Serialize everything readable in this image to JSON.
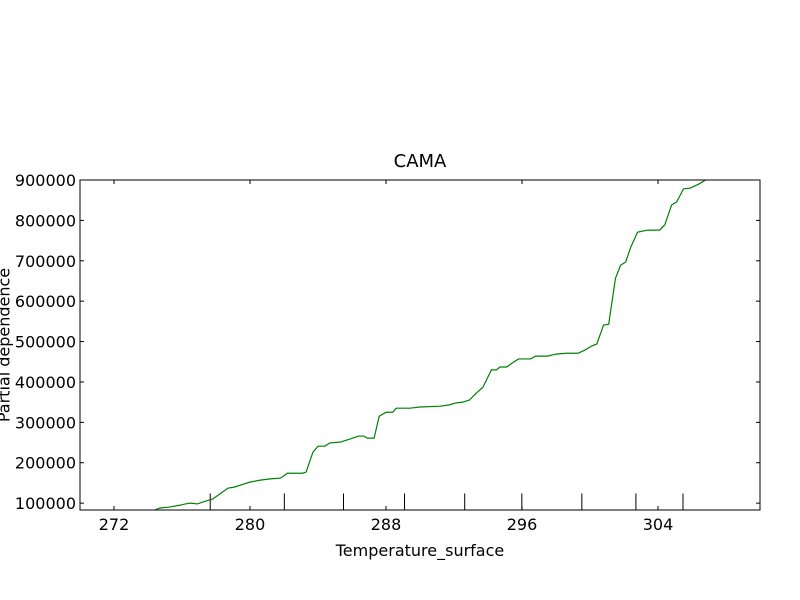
{
  "chart_data": {
    "type": "line",
    "title": "CAMA",
    "x_label": "Temperature_surface",
    "y_label": "Partial dependence",
    "x": [
      274.4,
      274.7,
      275.2,
      275.9,
      276.2,
      276.5,
      276.9,
      277.4,
      277.8,
      278.2,
      278.7,
      279.1,
      279.6,
      280.0,
      280.6,
      281.2,
      281.8,
      282.2,
      283.1,
      283.3,
      283.7,
      284.0,
      284.4,
      284.7,
      285.3,
      285.9,
      286.4,
      286.7,
      286.9,
      287.3,
      287.6,
      288.0,
      288.4,
      288.6,
      289.4,
      290.0,
      291.2,
      291.7,
      292.1,
      292.5,
      292.9,
      293.3,
      293.7,
      293.9,
      294.2,
      294.5,
      294.7,
      295.1,
      295.5,
      295.8,
      296.5,
      296.8,
      297.5,
      298.0,
      298.6,
      299.3,
      299.7,
      300.1,
      300.4,
      300.8,
      301.1,
      301.5,
      301.8,
      302.1,
      302.4,
      302.8,
      303.4,
      303.7,
      304.1,
      304.4,
      304.8,
      305.1,
      305.5,
      305.9,
      306.4,
      306.8
    ],
    "series": [
      {
        "color": "#008000",
        "values": [
          83000,
          88000,
          90000,
          95000,
          98000,
          100000,
          98000,
          105000,
          110000,
          122000,
          137000,
          140000,
          147000,
          152000,
          157000,
          160000,
          162000,
          174000,
          174000,
          177000,
          226000,
          241000,
          241000,
          249000,
          251000,
          259000,
          266000,
          266000,
          261000,
          261000,
          315000,
          325000,
          325000,
          335000,
          335000,
          338000,
          340000,
          343000,
          348000,
          350000,
          355000,
          372000,
          387000,
          404000,
          430000,
          430000,
          437000,
          437000,
          449000,
          457000,
          457000,
          464000,
          464000,
          469000,
          471000,
          471000,
          479000,
          489000,
          494000,
          541000,
          543000,
          657000,
          689000,
          697000,
          734000,
          771000,
          776000,
          776000,
          776000,
          789000,
          838000,
          846000,
          878000,
          880000,
          890000,
          900000
        ]
      }
    ],
    "deciles": [
      277.66,
      282.02,
      285.5,
      289.09,
      292.63,
      295.99,
      299.52,
      302.7,
      305.47
    ],
    "xlim": [
      270,
      310
    ],
    "ylim": [
      83000,
      900000
    ],
    "xticks": [
      272,
      280,
      288,
      296,
      304
    ],
    "yticks": [
      100000,
      200000,
      300000,
      400000,
      500000,
      600000,
      700000,
      800000,
      900000
    ]
  }
}
